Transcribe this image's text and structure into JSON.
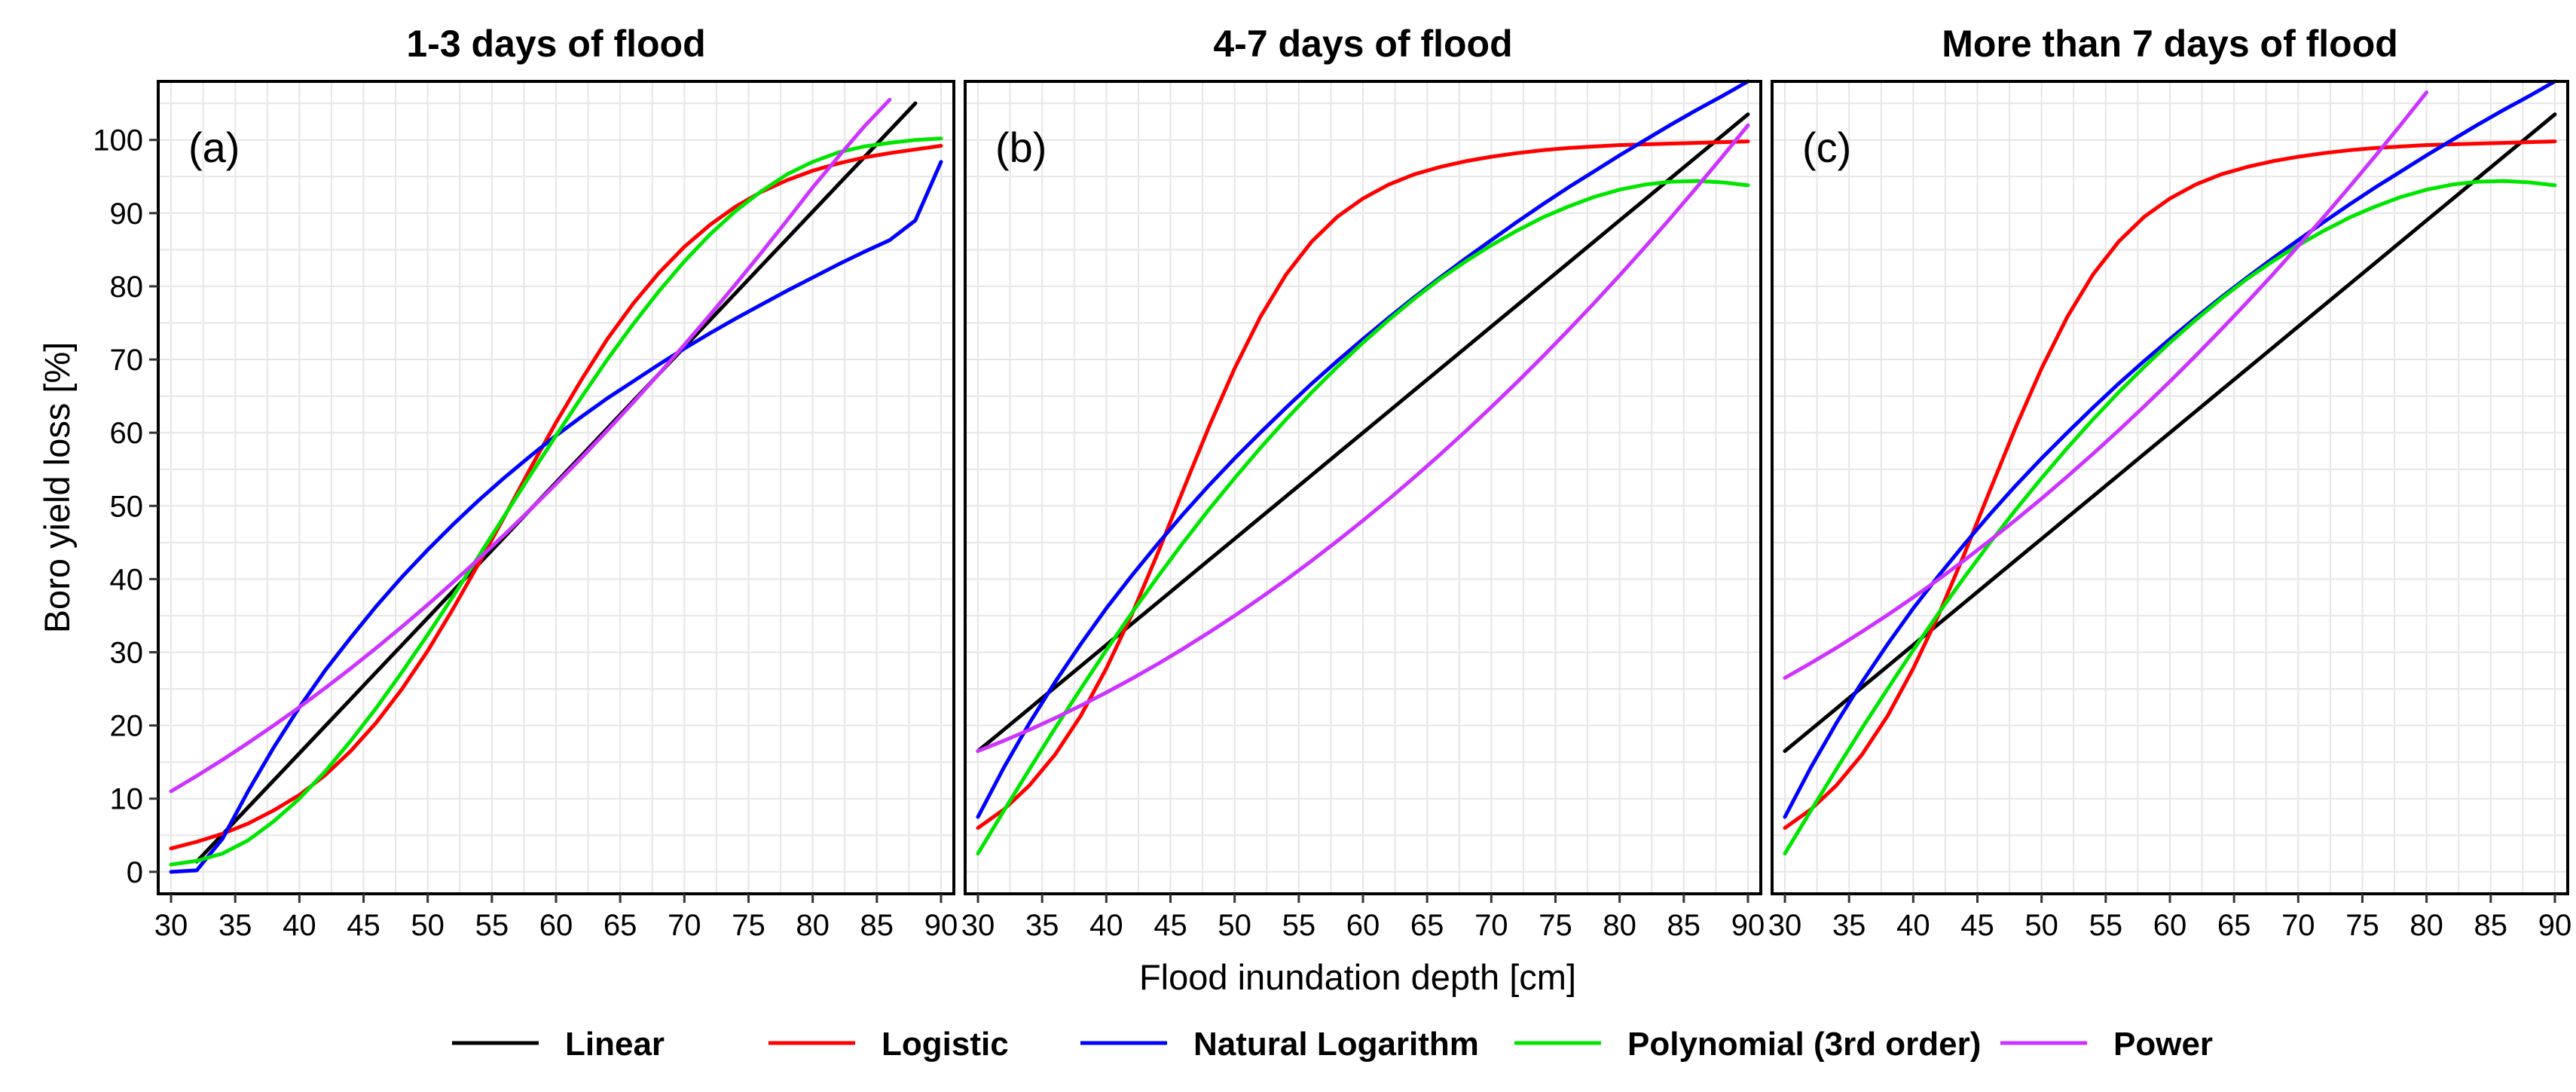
{
  "chart_data": {
    "type": "line",
    "xlabel": "Flood inundation depth [cm]",
    "ylabel": "Boro yield loss [%]",
    "xlim": [
      29,
      91
    ],
    "ylim": [
      -3,
      108
    ],
    "xticks": [
      30,
      35,
      40,
      45,
      50,
      55,
      60,
      65,
      70,
      75,
      80,
      85,
      90
    ],
    "yticks": [
      0,
      10,
      20,
      30,
      40,
      50,
      60,
      70,
      80,
      90,
      100
    ],
    "grid": true,
    "legend_position": "bottom",
    "x_values": [
      30,
      32,
      34,
      36,
      38,
      40,
      42,
      44,
      46,
      48,
      50,
      52,
      54,
      56,
      58,
      60,
      62,
      64,
      66,
      68,
      70,
      72,
      74,
      76,
      78,
      80,
      82,
      84,
      86,
      88,
      90
    ],
    "series_styles": [
      {
        "name": "Linear",
        "color": "#000000"
      },
      {
        "name": "Logistic",
        "color": "#ff0000"
      },
      {
        "name": "Natural Logarithm",
        "color": "#0000ff"
      },
      {
        "name": "Polynomial (3rd order)",
        "color": "#00e600"
      },
      {
        "name": "Power",
        "color": "#cc33ff"
      }
    ],
    "panels": [
      {
        "title": "1-3 days of flood",
        "tag": "(a)",
        "series": [
          {
            "name": "Linear",
            "values": [
              null,
              1.4,
              5.1,
              8.8,
              12.5,
              16.2,
              19.9,
              23.6,
              27.3,
              31.0,
              34.7,
              38.4,
              42.1,
              45.8,
              49.5,
              53.2,
              56.9,
              60.6,
              64.3,
              68.0,
              71.7,
              75.4,
              79.1,
              82.8,
              86.5,
              90.2,
              93.9,
              97.6,
              101.3,
              105.0,
              null
            ]
          },
          {
            "name": "Logistic",
            "values": [
              3.2,
              4.1,
              5.2,
              6.6,
              8.4,
              10.5,
              13.2,
              16.5,
              20.4,
              25.0,
              30.2,
              36.0,
              42.2,
              48.6,
              55.1,
              61.4,
              67.3,
              72.8,
              77.6,
              81.8,
              85.4,
              88.4,
              90.9,
              92.9,
              94.5,
              95.8,
              96.8,
              97.6,
              98.2,
              98.7,
              99.2
            ]
          },
          {
            "name": "Natural Logarithm",
            "values": [
              0.0,
              0.2,
              4.5,
              11.0,
              17.0,
              22.5,
              27.5,
              32.0,
              36.3,
              40.3,
              44.0,
              47.5,
              50.8,
              53.9,
              56.8,
              59.6,
              62.2,
              64.7,
              67.0,
              69.3,
              71.5,
              73.6,
              75.6,
              77.5,
              79.4,
              81.2,
              83.0,
              84.7,
              86.3,
              89.0,
              97.0
            ]
          },
          {
            "name": "Polynomial (3rd order)",
            "values": [
              1.0,
              1.5,
              2.5,
              4.3,
              6.9,
              10.0,
              13.7,
              17.9,
              22.4,
              27.3,
              32.4,
              37.7,
              43.2,
              48.7,
              54.2,
              59.6,
              64.9,
              70.0,
              74.8,
              79.3,
              83.4,
              87.1,
              90.3,
              93.0,
              95.3,
              97.0,
              98.3,
              99.1,
              99.6,
              100.0,
              100.2
            ]
          },
          {
            "name": "Power",
            "values": [
              11.0,
              13.1,
              15.3,
              17.6,
              20.0,
              22.5,
              25.1,
              27.8,
              30.6,
              33.5,
              36.5,
              39.6,
              42.8,
              46.1,
              49.5,
              53.0,
              56.6,
              60.3,
              64.1,
              68.0,
              72.0,
              76.1,
              80.3,
              84.6,
              89.0,
              93.5,
              97.7,
              101.8,
              105.5,
              null,
              null
            ]
          }
        ]
      },
      {
        "title": "4-7 days of flood",
        "tag": "(b)",
        "series": [
          {
            "name": "Linear",
            "values": [
              16.5,
              19.4,
              22.3,
              25.2,
              28.1,
              31.0,
              33.9,
              36.8,
              39.7,
              42.6,
              45.5,
              48.4,
              51.3,
              54.2,
              57.1,
              60.0,
              62.9,
              65.8,
              68.7,
              71.6,
              74.5,
              77.4,
              80.3,
              83.2,
              86.1,
              89.0,
              91.9,
              94.8,
              97.7,
              100.6,
              103.5
            ]
          },
          {
            "name": "Logistic",
            "values": [
              6.0,
              8.5,
              11.8,
              16.0,
              21.3,
              27.8,
              35.2,
              43.5,
              52.2,
              60.8,
              68.8,
              75.8,
              81.6,
              86.1,
              89.5,
              92.0,
              93.9,
              95.3,
              96.3,
              97.1,
              97.7,
              98.2,
              98.6,
              98.9,
              99.1,
              99.3,
              99.4,
              99.5,
              99.6,
              99.7,
              99.8
            ]
          },
          {
            "name": "Natural Logarithm",
            "values": [
              7.5,
              14.2,
              20.3,
              25.9,
              31.1,
              36.0,
              40.5,
              44.8,
              48.9,
              52.8,
              56.5,
              60.0,
              63.4,
              66.7,
              69.8,
              72.8,
              75.7,
              78.5,
              81.2,
              83.8,
              86.3,
              88.8,
              91.2,
              93.5,
              95.7,
              97.9,
              100.0,
              102.1,
              104.1,
              106.0,
              108.0
            ]
          },
          {
            "name": "Polynomial (3rd order)",
            "values": [
              2.5,
              8.3,
              14.0,
              19.6,
              25.0,
              30.3,
              35.4,
              40.3,
              45.0,
              49.5,
              53.8,
              57.9,
              61.8,
              65.5,
              69.0,
              72.3,
              75.4,
              78.3,
              81.0,
              83.4,
              85.6,
              87.6,
              89.4,
              90.9,
              92.2,
              93.2,
              93.9,
              94.3,
              94.4,
              94.2,
              93.8
            ]
          },
          {
            "name": "Power",
            "values": [
              16.5,
              17.9,
              19.4,
              21.0,
              22.7,
              24.5,
              26.4,
              28.4,
              30.5,
              32.7,
              35.0,
              37.4,
              39.9,
              42.5,
              45.2,
              48.0,
              50.9,
              53.9,
              57.0,
              60.2,
              63.5,
              66.9,
              70.4,
              74.0,
              77.7,
              81.5,
              85.4,
              89.4,
              93.5,
              97.7,
              102.0
            ]
          }
        ]
      },
      {
        "title": "More than 7 days of flood",
        "tag": "(c)",
        "series": [
          {
            "name": "Linear",
            "values": [
              16.5,
              19.4,
              22.3,
              25.2,
              28.1,
              31.0,
              33.9,
              36.8,
              39.7,
              42.6,
              45.5,
              48.4,
              51.3,
              54.2,
              57.1,
              60.0,
              62.9,
              65.8,
              68.7,
              71.6,
              74.5,
              77.4,
              80.3,
              83.2,
              86.1,
              89.0,
              91.9,
              94.8,
              97.7,
              100.6,
              103.5
            ]
          },
          {
            "name": "Logistic",
            "values": [
              6.0,
              8.5,
              11.8,
              16.0,
              21.3,
              27.8,
              35.2,
              43.5,
              52.2,
              60.8,
              68.8,
              75.8,
              81.6,
              86.1,
              89.5,
              92.0,
              93.9,
              95.3,
              96.3,
              97.1,
              97.7,
              98.2,
              98.6,
              98.9,
              99.1,
              99.3,
              99.4,
              99.5,
              99.6,
              99.7,
              99.8
            ]
          },
          {
            "name": "Natural Logarithm",
            "values": [
              7.5,
              14.2,
              20.3,
              25.9,
              31.1,
              36.0,
              40.5,
              44.8,
              48.9,
              52.8,
              56.5,
              60.0,
              63.4,
              66.7,
              69.8,
              72.8,
              75.7,
              78.5,
              81.2,
              83.8,
              86.3,
              88.8,
              91.2,
              93.5,
              95.7,
              97.9,
              100.0,
              102.1,
              104.1,
              106.0,
              108.0
            ]
          },
          {
            "name": "Polynomial (3rd order)",
            "values": [
              2.5,
              8.3,
              14.0,
              19.6,
              25.0,
              30.3,
              35.4,
              40.3,
              45.0,
              49.5,
              53.8,
              57.9,
              61.8,
              65.5,
              69.0,
              72.3,
              75.4,
              78.3,
              81.0,
              83.4,
              85.6,
              87.6,
              89.4,
              90.9,
              92.2,
              93.2,
              93.9,
              94.3,
              94.4,
              94.2,
              93.8
            ]
          },
          {
            "name": "Power",
            "values": [
              26.5,
              28.5,
              30.6,
              32.8,
              35.1,
              37.5,
              40.0,
              42.6,
              45.3,
              48.1,
              51.0,
              54.0,
              57.1,
              60.3,
              63.6,
              67.0,
              70.5,
              74.1,
              77.8,
              81.6,
              85.5,
              89.5,
              93.6,
              97.8,
              102.1,
              106.5,
              null,
              null,
              null,
              null,
              null
            ]
          }
        ]
      }
    ]
  }
}
